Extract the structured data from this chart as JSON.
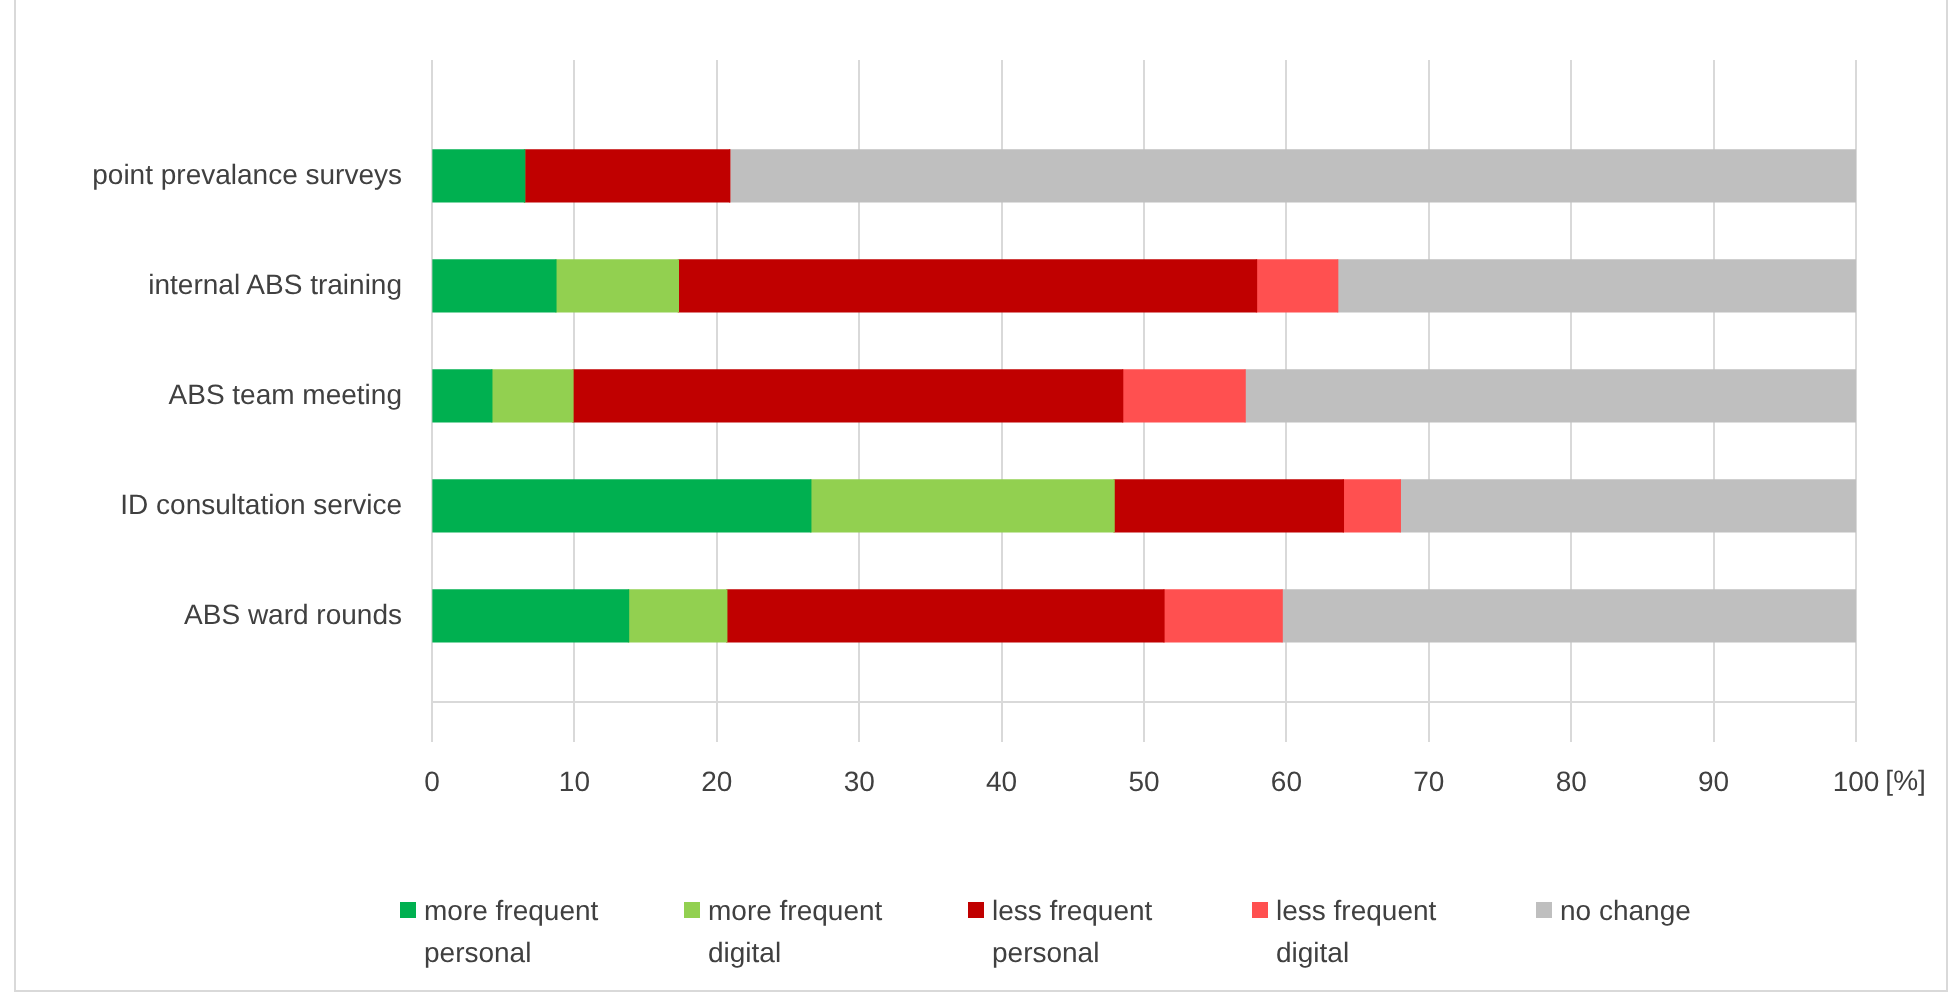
{
  "chart_data": {
    "type": "bar",
    "orientation": "horizontal",
    "stacked": true,
    "categories": [
      "point prevalance surveys",
      "internal ABS training",
      "ABS team meeting",
      "ID consultation service",
      "ABS ward rounds"
    ],
    "series": [
      {
        "name": "more frequent personal",
        "color": "#00b050",
        "values": [
          6.5,
          8.7,
          4.2,
          26.6,
          13.8
        ]
      },
      {
        "name": "more frequent digital",
        "color": "#92d050",
        "values": [
          0,
          8.6,
          5.7,
          21.3,
          6.9
        ]
      },
      {
        "name": "less frequent personal",
        "color": "#c00000",
        "values": [
          14.4,
          40.6,
          38.6,
          16.1,
          30.7
        ]
      },
      {
        "name": "less frequent digital",
        "color": "#ff5050",
        "values": [
          0,
          5.7,
          8.6,
          4.0,
          8.3
        ]
      },
      {
        "name": "no change",
        "color": "#bfbfbf",
        "values": [
          79.1,
          36.4,
          42.9,
          32.0,
          40.3
        ]
      }
    ],
    "xlim": [
      0,
      100
    ],
    "xticks": [
      0,
      10,
      20,
      30,
      40,
      50,
      60,
      70,
      80,
      90,
      100
    ],
    "xlabel": "[%]",
    "grid": "x",
    "legend": "bottom"
  }
}
